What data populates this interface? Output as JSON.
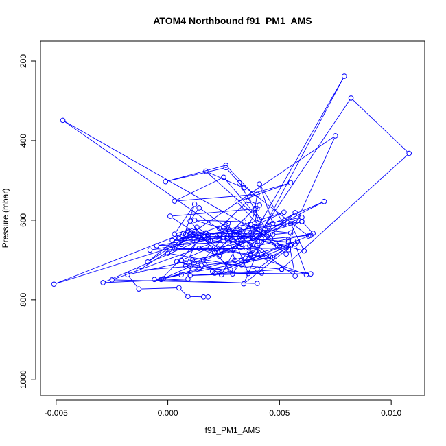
{
  "chart_data": {
    "type": "line",
    "title": "ATOM4 Northbound f91_PM1_AMS",
    "xlabel": "f91_PM1_AMS",
    "ylabel": "Pressure (mbar)",
    "xlim": [
      -0.0057,
      0.0115
    ],
    "ylim": [
      1040,
      150
    ],
    "y_reversed": true,
    "grid": false,
    "legend": "none",
    "x_ticks": [
      {
        "value": -0.005,
        "label": "-0.005"
      },
      {
        "value": 0.0,
        "label": "0.000"
      },
      {
        "value": 0.005,
        "label": "0.005"
      },
      {
        "value": 0.01,
        "label": "0.010"
      }
    ],
    "y_ticks": [
      {
        "value": 200,
        "label": "200"
      },
      {
        "value": 400,
        "label": "400"
      },
      {
        "value": 600,
        "label": "600"
      },
      {
        "value": 800,
        "label": "800"
      },
      {
        "value": 1000,
        "label": "1000"
      }
    ],
    "series": [
      {
        "color": "#0000ff",
        "marker": "open-circle",
        "x": [
          0.0018,
          0.0016,
          0.0009,
          0.0005,
          -0.0013,
          -0.0018,
          0.0065,
          0.006,
          0.0055,
          0.0061,
          0.0038,
          0.0012,
          0.0034,
          0.0054,
          0.0053,
          0.0037,
          0.0045,
          0.0034,
          0.0058,
          0.0049,
          0.0055,
          0.0033,
          0.0037,
          0.0062,
          0.0057,
          0.0046,
          0.004,
          0.0034,
          0.0038,
          0.0023,
          0.0014,
          0.0021,
          0.0028,
          0.0042,
          0.0026,
          0.003,
          0.0033,
          0.0044,
          0.0037,
          0.0024,
          0.0001,
          0.004,
          0.0038,
          0.007,
          0.0047,
          0.0041,
          0.0052,
          0.0038,
          0.0021,
          0.0032,
          0.0026,
          0.0002,
          0.0018,
          0.001,
          0.0016,
          0.0037,
          0.0025,
          0.0019,
          0.0022,
          0.0033,
          0.0028,
          0.0054,
          0.0042,
          0.0047,
          0.0055,
          0.004,
          0.0023,
          0.004,
          0.004,
          0.0005,
          0.006,
          0.0043,
          0.0008,
          0.0009,
          0.0018,
          0.0013,
          0.0003,
          0.0012,
          0.0006,
          0.0,
          0.004,
          0.0053,
          -0.0008,
          0.0025,
          0.0032,
          0.001,
          -0.0013,
          0.001,
          0.0026,
          0.0004,
          0.0014,
          -0.0002,
          0.0006,
          0.005,
          0.0031,
          0.0034,
          0.006,
          -0.0003,
          0.0017,
          0.0012,
          -0.0009,
          0.0007,
          -0.0051,
          0.0052,
          0.0027,
          -0.0025,
          0.004,
          -0.0006,
          0.0047,
          0.0015,
          0.0011,
          0.0009,
          -0.0029,
          0.0018,
          -0.0005,
          0.0031,
          0.0064,
          0.0021,
          0.0064,
          0.0051,
          0.001,
          0.0042,
          0.002,
          0.0016,
          0.0025,
          0.0013,
          0.0008,
          0.0043,
          -0.0047,
          0.0032,
          0.0022,
          0.0037,
          0.0057,
          0.0035,
          0.0079,
          0.0038,
          0.0003,
          0.0019,
          0.0006,
          0.0051,
          0.0108,
          0.0082,
          0.0029,
          0.001,
          0.0014,
          0.0057,
          0.0054,
          0.0075,
          0.0006,
          0.0027,
          0.0036,
          0.0024,
          0.0041,
          0.0036,
          0.0023,
          0.0028,
          0.0039,
          0.004,
          0.0003,
          0.0025,
          0.0041,
          0.0017,
          0.0034,
          0.0026,
          -0.0001,
          0.0026,
          0.0038,
          0.0055,
          0.0031,
          0.0046,
          0.0039,
          0.0032,
          0.0063
        ],
        "y": [
          793,
          793,
          792,
          770,
          773,
          737,
          633,
          603,
          609,
          677,
          645,
          600,
          604,
          674,
          685,
          610,
          617,
          760,
          653,
          664,
          664,
          712,
          685,
          737,
          660,
          692,
          663,
          651,
          635,
          690,
          671,
          680,
          724,
          686,
          612,
          701,
          702,
          687,
          689,
          675,
          590,
          571,
          646,
          553,
          608,
          509,
          610,
          624,
          682,
          624,
          627,
          651,
          650,
          634,
          641,
          640,
          654,
          651,
          643,
          661,
          640,
          655,
          654,
          636,
          632,
          623,
          636,
          686,
          640,
          645,
          604,
          633,
          635,
          628,
          636,
          618,
          635,
          560,
          661,
          683,
          723,
          670,
          675,
          643,
          641,
          643,
          726,
          716,
          726,
          704,
          721,
          747,
          737,
          668,
          626,
          619,
          593,
          749,
          632,
          629,
          705,
          633,
          761,
          580,
          643,
          750,
          759,
          749,
          693,
          714,
          700,
          748,
          757,
          642,
          664,
          654,
          638,
          733,
          735,
          724,
          739,
          733,
          729,
          700,
          642,
          651,
          715,
          637,
          349,
          658,
          670,
          687,
          581,
          670,
          238,
          671,
          672,
          669,
          701,
          723,
          432,
          293,
          735,
          602,
          569,
          740,
          649,
          388,
          651,
          608,
          734,
          737,
          562,
          551,
          620,
          632,
          570,
          535,
          552,
          492,
          598,
          477,
          519,
          468,
          503,
          462,
          533,
          506,
          554,
          645,
          574,
          506,
          640
        ]
      }
    ]
  }
}
